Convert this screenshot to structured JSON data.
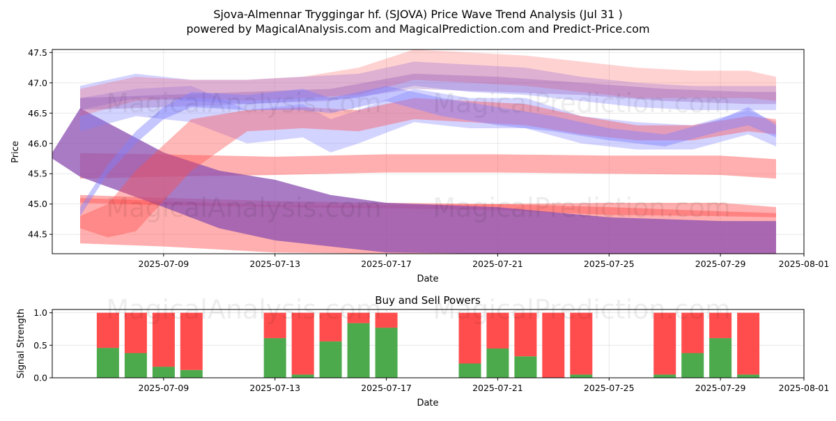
{
  "title_line1": "Sjova-Almennar Tryggingar hf. (SJOVA) Price Wave Trend Analysis (Jul 31 )",
  "title_line2": "powered by MagicalAnalysis.com and MagicalPrediction.com and Predict-Price.com",
  "watermarks": [
    "MagicalAnalysis.com",
    "MagicalPrediction.com"
  ],
  "colors": {
    "red": "#ff4d4d",
    "blue": "#8080ff",
    "purple": "#8b4fb0",
    "green": "#4caa4c"
  },
  "chart_data": [
    {
      "type": "area",
      "name": "price-wave-chart",
      "xlabel": "Date",
      "ylabel": "Price",
      "ylim": [
        44.18,
        47.55
      ],
      "y_ticks": [
        44.5,
        45.0,
        45.5,
        46.0,
        46.5,
        47.0,
        47.5
      ],
      "y_tick_labels": [
        "44.5",
        "45.0",
        "45.5",
        "46.0",
        "46.5",
        "47.0",
        "47.5"
      ],
      "x_range": [
        "2025-07-05",
        "2025-08-01"
      ],
      "x_ticks": [
        "2025-07-09",
        "2025-07-13",
        "2025-07-17",
        "2025-07-21",
        "2025-07-25",
        "2025-07-29",
        "2025-08-01"
      ],
      "grid": true,
      "bands": [
        {
          "color": "red",
          "opacity": 0.45,
          "x": [
            "2025-07-06",
            "2025-07-09",
            "2025-07-13",
            "2025-07-17",
            "2025-07-21",
            "2025-07-25",
            "2025-07-29",
            "2025-07-31"
          ],
          "lower": [
            45.42,
            45.45,
            45.48,
            45.52,
            45.52,
            45.5,
            45.48,
            45.42
          ],
          "upper": [
            45.84,
            45.82,
            45.78,
            45.82,
            45.82,
            45.8,
            45.8,
            45.74
          ]
        },
        {
          "color": "red",
          "opacity": 0.45,
          "x": [
            "2025-07-06",
            "2025-07-09",
            "2025-07-13",
            "2025-07-17",
            "2025-07-21",
            "2025-07-25",
            "2025-07-29",
            "2025-07-31"
          ],
          "lower": [
            44.35,
            44.3,
            44.2,
            44.18,
            44.18,
            44.18,
            44.18,
            44.18
          ],
          "upper": [
            45.1,
            45.05,
            44.98,
            44.98,
            45.0,
            45.02,
            45.02,
            44.95
          ]
        },
        {
          "color": "red",
          "opacity": 0.45,
          "x": [
            "2025-07-06",
            "2025-07-09",
            "2025-07-13",
            "2025-07-17",
            "2025-07-21",
            "2025-07-25",
            "2025-07-29",
            "2025-07-31"
          ],
          "lower": [
            45.02,
            44.98,
            44.95,
            44.93,
            44.9,
            44.82,
            44.8,
            44.78
          ],
          "upper": [
            45.15,
            45.1,
            45.05,
            45.02,
            45.0,
            44.95,
            44.88,
            44.85
          ]
        },
        {
          "color": "purple",
          "opacity": 0.75,
          "x": [
            "2025-07-05",
            "2025-07-06",
            "2025-07-09",
            "2025-07-11",
            "2025-07-13",
            "2025-07-15",
            "2025-07-17",
            "2025-07-21",
            "2025-07-25",
            "2025-07-29",
            "2025-07-31"
          ],
          "lower": [
            45.75,
            45.45,
            44.95,
            44.6,
            44.4,
            44.3,
            44.2,
            44.18,
            44.18,
            44.18,
            44.18
          ],
          "upper": [
            45.85,
            46.58,
            45.85,
            45.55,
            45.4,
            45.15,
            45.02,
            44.95,
            44.78,
            44.72,
            44.72
          ]
        },
        {
          "color": "blue",
          "opacity": 0.35,
          "x": [
            "2025-07-06",
            "2025-07-08",
            "2025-07-10",
            "2025-07-12",
            "2025-07-14",
            "2025-07-15",
            "2025-07-16",
            "2025-07-18",
            "2025-07-20",
            "2025-07-22",
            "2025-07-24",
            "2025-07-26",
            "2025-07-28",
            "2025-07-30",
            "2025-07-31"
          ],
          "lower": [
            46.2,
            46.45,
            46.35,
            46.0,
            46.1,
            45.85,
            46.0,
            46.35,
            46.25,
            46.25,
            46.0,
            45.9,
            45.9,
            46.15,
            45.95
          ],
          "upper": [
            46.75,
            46.9,
            46.95,
            46.55,
            46.65,
            46.4,
            46.55,
            46.9,
            46.75,
            46.75,
            46.45,
            46.35,
            46.3,
            46.55,
            46.35
          ]
        },
        {
          "color": "blue",
          "opacity": 0.35,
          "x": [
            "2025-07-06",
            "2025-07-08",
            "2025-07-10",
            "2025-07-12",
            "2025-07-14",
            "2025-07-16",
            "2025-07-18",
            "2025-07-20",
            "2025-07-22",
            "2025-07-24",
            "2025-07-26",
            "2025-07-28",
            "2025-07-30",
            "2025-07-31"
          ],
          "lower": [
            46.55,
            46.75,
            46.7,
            46.65,
            46.7,
            46.75,
            46.95,
            46.85,
            46.8,
            46.7,
            46.6,
            46.55,
            46.55,
            46.55
          ],
          "upper": [
            46.95,
            47.15,
            47.05,
            47.05,
            47.1,
            47.15,
            47.35,
            47.3,
            47.25,
            47.1,
            47.0,
            46.95,
            46.95,
            46.95
          ]
        },
        {
          "color": "red",
          "opacity": 0.25,
          "x": [
            "2025-07-06",
            "2025-07-08",
            "2025-07-10",
            "2025-07-12",
            "2025-07-14",
            "2025-07-16",
            "2025-07-18",
            "2025-07-20",
            "2025-07-22",
            "2025-07-24",
            "2025-07-26",
            "2025-07-28",
            "2025-07-30",
            "2025-07-31"
          ],
          "lower": [
            46.45,
            46.7,
            46.75,
            46.7,
            46.75,
            46.8,
            47.05,
            47.0,
            46.95,
            46.85,
            46.75,
            46.75,
            46.75,
            46.7
          ],
          "upper": [
            46.9,
            47.1,
            47.05,
            47.05,
            47.1,
            47.25,
            47.55,
            47.5,
            47.45,
            47.35,
            47.25,
            47.2,
            47.2,
            47.1
          ]
        },
        {
          "color": "purple",
          "opacity": 0.3,
          "x": [
            "2025-07-06",
            "2025-07-09",
            "2025-07-12",
            "2025-07-15",
            "2025-07-18",
            "2025-07-21",
            "2025-07-24",
            "2025-07-27",
            "2025-07-30",
            "2025-07-31"
          ],
          "lower": [
            46.55,
            46.6,
            46.65,
            46.7,
            46.9,
            46.85,
            46.8,
            46.7,
            46.65,
            46.65
          ],
          "upper": [
            46.75,
            46.8,
            46.85,
            46.9,
            47.15,
            47.1,
            47.0,
            46.9,
            46.85,
            46.85
          ]
        },
        {
          "color": "red",
          "opacity": 0.4,
          "x": [
            "2025-07-06",
            "2025-07-07",
            "2025-07-08",
            "2025-07-10",
            "2025-07-12",
            "2025-07-14",
            "2025-07-16",
            "2025-07-18",
            "2025-07-20",
            "2025-07-22",
            "2025-07-24",
            "2025-07-26",
            "2025-07-28",
            "2025-07-30",
            "2025-07-31"
          ],
          "lower": [
            44.6,
            44.45,
            44.55,
            45.55,
            46.2,
            46.25,
            46.2,
            46.4,
            46.35,
            46.3,
            46.15,
            46.05,
            46.05,
            46.2,
            46.15
          ],
          "upper": [
            44.8,
            45.0,
            45.55,
            46.4,
            46.55,
            46.6,
            46.55,
            46.75,
            46.7,
            46.65,
            46.45,
            46.3,
            46.3,
            46.45,
            46.4
          ]
        },
        {
          "color": "blue",
          "opacity": 0.45,
          "x": [
            "2025-07-06",
            "2025-07-07",
            "2025-07-08",
            "2025-07-09",
            "2025-07-10",
            "2025-07-12",
            "2025-07-14",
            "2025-07-15",
            "2025-07-16",
            "2025-07-17",
            "2025-07-19",
            "2025-07-21",
            "2025-07-23",
            "2025-07-25",
            "2025-07-27",
            "2025-07-29",
            "2025-07-30",
            "2025-07-31"
          ],
          "lower": [
            44.8,
            45.5,
            46.0,
            46.4,
            46.6,
            46.55,
            46.55,
            46.5,
            46.6,
            46.7,
            46.45,
            46.3,
            46.2,
            46.05,
            45.95,
            46.2,
            46.3,
            46.1
          ],
          "upper": [
            44.95,
            45.65,
            46.2,
            46.6,
            46.85,
            46.8,
            46.9,
            46.75,
            46.85,
            46.95,
            46.75,
            46.6,
            46.45,
            46.25,
            46.15,
            46.4,
            46.6,
            46.3
          ]
        }
      ]
    },
    {
      "type": "bar",
      "name": "buy-sell-powers",
      "title": "Buy and Sell Powers",
      "xlabel": "Date",
      "ylabel": "Signal Strength",
      "ylim": [
        0,
        1.05
      ],
      "y_ticks": [
        0.0,
        0.5,
        1.0
      ],
      "y_tick_labels": [
        "0.0",
        "0.5",
        "1.0"
      ],
      "x_range": [
        "2025-07-05",
        "2025-08-01"
      ],
      "x_ticks": [
        "2025-07-09",
        "2025-07-13",
        "2025-07-17",
        "2025-07-21",
        "2025-07-25",
        "2025-07-29",
        "2025-08-01"
      ],
      "grid": true,
      "stacked": true,
      "dates": [
        "2025-07-07",
        "2025-07-08",
        "2025-07-09",
        "2025-07-10",
        "2025-07-13",
        "2025-07-14",
        "2025-07-15",
        "2025-07-16",
        "2025-07-17",
        "2025-07-20",
        "2025-07-21",
        "2025-07-22",
        "2025-07-23",
        "2025-07-24",
        "2025-07-27",
        "2025-07-28",
        "2025-07-29",
        "2025-07-30"
      ],
      "series": [
        {
          "name": "",
          "color": "green",
          "values": [
            0.46,
            0.38,
            0.17,
            0.12,
            0.61,
            0.05,
            0.56,
            0.84,
            0.77,
            0.22,
            0.45,
            0.33,
            0.0,
            0.05,
            0.05,
            0.38,
            0.61,
            0.05
          ]
        },
        {
          "name": "",
          "color": "red",
          "values": [
            0.54,
            0.62,
            0.83,
            0.88,
            0.39,
            0.95,
            0.44,
            0.16,
            0.23,
            0.78,
            0.55,
            0.67,
            1.0,
            0.95,
            0.95,
            0.62,
            0.39,
            0.95
          ]
        }
      ]
    }
  ]
}
